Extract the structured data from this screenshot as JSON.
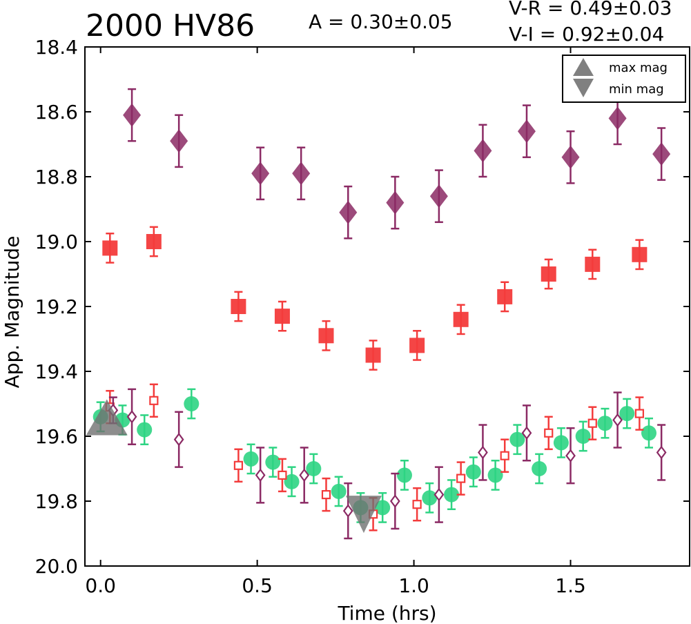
{
  "header": {
    "title": "2000 HV86",
    "amplitude": "A  = 0.30±0.05",
    "v_r": "V-R = 0.49±0.03",
    "v_i": "V-I  = 0.92±0.04"
  },
  "chart_data": {
    "type": "scatter",
    "title": "2000 HV86",
    "xlabel": "Time (hrs)",
    "ylabel": "App. Magnitude",
    "xlim": [
      -0.05,
      1.88
    ],
    "ylim": [
      20.0,
      18.4
    ],
    "y_inverted": true,
    "grid": false,
    "legend_position": "top-right",
    "x_ticks": [
      0.0,
      0.5,
      1.0,
      1.5
    ],
    "x_tick_labels": [
      "0.0",
      "0.5",
      "1.0",
      "1.5"
    ],
    "y_ticks": [
      18.4,
      18.6,
      18.8,
      19.0,
      19.2,
      19.4,
      19.6,
      19.8,
      20.0
    ],
    "y_tick_labels": [
      "18.4",
      "18.6",
      "18.8",
      "19.0",
      "19.2",
      "19.4",
      "19.6",
      "19.8",
      "20.0"
    ],
    "legend": [
      {
        "label": "max mag",
        "marker": "triangle-up",
        "color": "#808080"
      },
      {
        "label": "min mag",
        "marker": "triangle-down",
        "color": "#808080"
      }
    ],
    "series": [
      {
        "marker": "diamond-filled",
        "color": "#8b2a64",
        "points": [
          {
            "x": 0.1,
            "y": 18.61,
            "err": 0.08
          },
          {
            "x": 0.25,
            "y": 18.69,
            "err": 0.08
          },
          {
            "x": 0.51,
            "y": 18.79,
            "err": 0.08
          },
          {
            "x": 0.64,
            "y": 18.79,
            "err": 0.08
          },
          {
            "x": 0.79,
            "y": 18.91,
            "err": 0.08
          },
          {
            "x": 0.94,
            "y": 18.88,
            "err": 0.08
          },
          {
            "x": 1.08,
            "y": 18.86,
            "err": 0.08
          },
          {
            "x": 1.22,
            "y": 18.72,
            "err": 0.08
          },
          {
            "x": 1.36,
            "y": 18.66,
            "err": 0.08
          },
          {
            "x": 1.5,
            "y": 18.74,
            "err": 0.08
          },
          {
            "x": 1.65,
            "y": 18.62,
            "err": 0.08
          },
          {
            "x": 1.79,
            "y": 18.73,
            "err": 0.08
          }
        ]
      },
      {
        "marker": "square-filled",
        "color": "#f33b3b",
        "points": [
          {
            "x": 0.03,
            "y": 19.02,
            "err": 0.045
          },
          {
            "x": 0.17,
            "y": 19.0,
            "err": 0.045
          },
          {
            "x": 0.44,
            "y": 19.2,
            "err": 0.045
          },
          {
            "x": 0.58,
            "y": 19.23,
            "err": 0.045
          },
          {
            "x": 0.72,
            "y": 19.29,
            "err": 0.045
          },
          {
            "x": 0.87,
            "y": 19.35,
            "err": 0.045
          },
          {
            "x": 1.01,
            "y": 19.32,
            "err": 0.045
          },
          {
            "x": 1.15,
            "y": 19.24,
            "err": 0.045
          },
          {
            "x": 1.29,
            "y": 19.17,
            "err": 0.045
          },
          {
            "x": 1.43,
            "y": 19.1,
            "err": 0.045
          },
          {
            "x": 1.57,
            "y": 19.07,
            "err": 0.045
          },
          {
            "x": 1.72,
            "y": 19.04,
            "err": 0.045
          }
        ]
      },
      {
        "marker": "diamond-open",
        "color": "#8b2a64",
        "points": [
          {
            "x": 0.04,
            "y": 19.52,
            "err": 0.04
          },
          {
            "x": 0.1,
            "y": 19.54,
            "err": 0.085
          },
          {
            "x": 0.25,
            "y": 19.61,
            "err": 0.085
          },
          {
            "x": 0.51,
            "y": 19.72,
            "err": 0.085
          },
          {
            "x": 0.65,
            "y": 19.72,
            "err": 0.085
          },
          {
            "x": 0.79,
            "y": 19.83,
            "err": 0.085
          },
          {
            "x": 0.94,
            "y": 19.8,
            "err": 0.085
          },
          {
            "x": 1.08,
            "y": 19.78,
            "err": 0.085
          },
          {
            "x": 1.22,
            "y": 19.65,
            "err": 0.085
          },
          {
            "x": 1.36,
            "y": 19.59,
            "err": 0.085
          },
          {
            "x": 1.5,
            "y": 19.66,
            "err": 0.085
          },
          {
            "x": 1.65,
            "y": 19.55,
            "err": 0.085
          },
          {
            "x": 1.79,
            "y": 19.65,
            "err": 0.085
          }
        ]
      },
      {
        "marker": "square-open",
        "color": "#f33b3b",
        "points": [
          {
            "x": 0.03,
            "y": 19.51,
            "err": 0.05
          },
          {
            "x": 0.17,
            "y": 19.49,
            "err": 0.05
          },
          {
            "x": 0.44,
            "y": 19.69,
            "err": 0.05
          },
          {
            "x": 0.58,
            "y": 19.72,
            "err": 0.05
          },
          {
            "x": 0.72,
            "y": 19.78,
            "err": 0.05
          },
          {
            "x": 0.87,
            "y": 19.84,
            "err": 0.05
          },
          {
            "x": 1.01,
            "y": 19.81,
            "err": 0.05
          },
          {
            "x": 1.15,
            "y": 19.73,
            "err": 0.05
          },
          {
            "x": 1.29,
            "y": 19.66,
            "err": 0.05
          },
          {
            "x": 1.43,
            "y": 19.59,
            "err": 0.05
          },
          {
            "x": 1.57,
            "y": 19.56,
            "err": 0.05
          },
          {
            "x": 1.72,
            "y": 19.53,
            "err": 0.05
          }
        ]
      },
      {
        "marker": "circle-filled",
        "color": "#2ed483",
        "points": [
          {
            "x": 0.0,
            "y": 19.54,
            "err": 0.045
          },
          {
            "x": 0.07,
            "y": 19.55,
            "err": 0.045
          },
          {
            "x": 0.14,
            "y": 19.58,
            "err": 0.045
          },
          {
            "x": 0.29,
            "y": 19.5,
            "err": 0.045
          },
          {
            "x": 0.48,
            "y": 19.67,
            "err": 0.045
          },
          {
            "x": 0.55,
            "y": 19.68,
            "err": 0.045
          },
          {
            "x": 0.61,
            "y": 19.74,
            "err": 0.045
          },
          {
            "x": 0.68,
            "y": 19.7,
            "err": 0.045
          },
          {
            "x": 0.76,
            "y": 19.77,
            "err": 0.045
          },
          {
            "x": 0.83,
            "y": 19.82,
            "err": 0.045
          },
          {
            "x": 0.9,
            "y": 19.82,
            "err": 0.045
          },
          {
            "x": 0.97,
            "y": 19.72,
            "err": 0.045
          },
          {
            "x": 1.05,
            "y": 19.79,
            "err": 0.045
          },
          {
            "x": 1.12,
            "y": 19.78,
            "err": 0.045
          },
          {
            "x": 1.19,
            "y": 19.71,
            "err": 0.045
          },
          {
            "x": 1.26,
            "y": 19.72,
            "err": 0.045
          },
          {
            "x": 1.33,
            "y": 19.61,
            "err": 0.045
          },
          {
            "x": 1.4,
            "y": 19.7,
            "err": 0.045
          },
          {
            "x": 1.47,
            "y": 19.62,
            "err": 0.045
          },
          {
            "x": 1.54,
            "y": 19.6,
            "err": 0.045
          },
          {
            "x": 1.61,
            "y": 19.56,
            "err": 0.045
          },
          {
            "x": 1.68,
            "y": 19.53,
            "err": 0.045
          },
          {
            "x": 1.75,
            "y": 19.59,
            "err": 0.045
          }
        ]
      }
    ],
    "annotations": [
      {
        "label": "max mag",
        "marker": "triangle-up",
        "x": 0.02,
        "y": 19.55
      },
      {
        "label": "min mag",
        "marker": "triangle-down",
        "x": 0.84,
        "y": 19.83
      }
    ]
  }
}
